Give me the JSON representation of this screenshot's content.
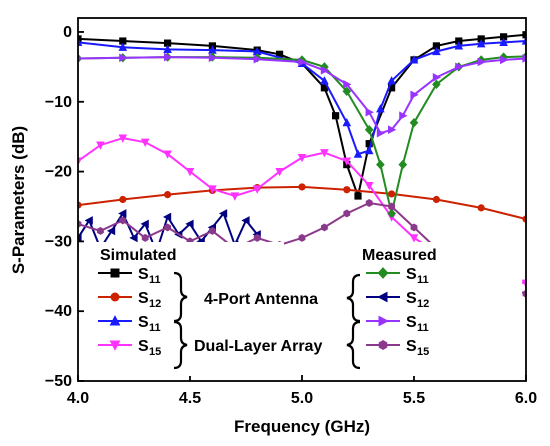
{
  "chart_data": {
    "type": "line",
    "title": "",
    "xlabel": "Frequency (GHz)",
    "ylabel": "S-Parameters (dB)",
    "xlim": [
      4.0,
      6.0
    ],
    "ylim": [
      -50,
      2
    ],
    "xticks": [
      4.0,
      4.5,
      5.0,
      5.5,
      6.0
    ],
    "xtick_labels": [
      "4.0",
      "4.5",
      "5.0",
      "5.5",
      "6.0"
    ],
    "yticks": [
      0,
      -10,
      -20,
      -30,
      -40,
      -50
    ],
    "ytick_labels": [
      "0",
      "−10",
      "−20",
      "−30",
      "−40",
      "−50"
    ],
    "grid": false,
    "legend": {
      "simulated_title": "Simulated",
      "measured_title": "Measured",
      "group_4port": "4-Port Antenna",
      "group_dual": "Dual-Layer Array",
      "entries": [
        {
          "id": "sim_s11_4p",
          "label": "S",
          "sub": "11"
        },
        {
          "id": "sim_s12_4p",
          "label": "S",
          "sub": "12"
        },
        {
          "id": "sim_s11_dl",
          "label": "S",
          "sub": "11"
        },
        {
          "id": "sim_s15_dl",
          "label": "S",
          "sub": "15"
        },
        {
          "id": "meas_s11_4p",
          "label": "S",
          "sub": "11"
        },
        {
          "id": "meas_s12_4p",
          "label": "S",
          "sub": "12"
        },
        {
          "id": "meas_s11_dl",
          "label": "S",
          "sub": "11"
        },
        {
          "id": "meas_s15_dl",
          "label": "S",
          "sub": "15"
        }
      ]
    },
    "series": [
      {
        "id": "sim_s11_4p",
        "color": "#000000",
        "marker": "square",
        "x": [
          4.0,
          4.2,
          4.4,
          4.6,
          4.8,
          4.9,
          5.0,
          5.1,
          5.15,
          5.2,
          5.25,
          5.3,
          5.4,
          5.5,
          5.6,
          5.7,
          5.8,
          5.9,
          6.0
        ],
        "y": [
          -1.0,
          -1.3,
          -1.6,
          -2.0,
          -2.6,
          -3.2,
          -4.5,
          -8.0,
          -12.0,
          -19.0,
          -23.5,
          -16.0,
          -8.0,
          -4.0,
          -2.0,
          -1.3,
          -1.0,
          -0.7,
          -0.4
        ]
      },
      {
        "id": "sim_s12_4p",
        "color": "#cc2200",
        "marker": "circle",
        "x": [
          4.0,
          4.2,
          4.4,
          4.6,
          4.8,
          5.0,
          5.2,
          5.4,
          5.6,
          5.8,
          6.0
        ],
        "y": [
          -24.8,
          -24.0,
          -23.3,
          -22.7,
          -22.3,
          -22.2,
          -22.6,
          -23.2,
          -24.0,
          -25.2,
          -26.8
        ]
      },
      {
        "id": "sim_s11_dl",
        "color": "#1a1aff",
        "marker": "triangle-up",
        "x": [
          4.0,
          4.2,
          4.4,
          4.6,
          4.8,
          5.0,
          5.1,
          5.2,
          5.25,
          5.3,
          5.35,
          5.4,
          5.5,
          5.6,
          5.7,
          5.8,
          5.9,
          6.0
        ],
        "y": [
          -1.5,
          -2.2,
          -2.5,
          -2.6,
          -2.8,
          -4.5,
          -7.0,
          -13.0,
          -17.5,
          -17.0,
          -11.0,
          -7.0,
          -4.0,
          -2.8,
          -2.0,
          -1.7,
          -1.5,
          -1.3
        ]
      },
      {
        "id": "sim_s15_dl",
        "color": "#ff33ff",
        "marker": "triangle-down",
        "x": [
          4.0,
          4.1,
          4.2,
          4.3,
          4.4,
          4.5,
          4.6,
          4.7,
          4.8,
          4.9,
          5.0,
          5.1,
          5.2,
          5.3,
          5.4,
          5.5,
          5.6,
          5.7,
          5.8,
          5.9,
          6.0
        ],
        "y": [
          -18.5,
          -16.2,
          -15.2,
          -15.8,
          -17.5,
          -20.0,
          -22.5,
          -23.5,
          -22.5,
          -20.0,
          -18.0,
          -17.3,
          -18.5,
          -22.0,
          -26.5,
          -29.5,
          -31.5,
          -33.0,
          -34.5,
          -35.5,
          -36.0
        ]
      },
      {
        "id": "meas_s11_4p",
        "color": "#228b22",
        "marker": "diamond",
        "x": [
          4.0,
          4.2,
          4.4,
          4.6,
          4.8,
          5.0,
          5.1,
          5.2,
          5.3,
          5.35,
          5.4,
          5.45,
          5.5,
          5.6,
          5.7,
          5.8,
          5.9,
          6.0
        ],
        "y": [
          -3.8,
          -3.7,
          -3.6,
          -3.6,
          -3.7,
          -4.0,
          -5.0,
          -8.5,
          -14.0,
          -19.0,
          -26.0,
          -19.0,
          -13.0,
          -7.5,
          -5.0,
          -4.0,
          -3.6,
          -3.5
        ]
      },
      {
        "id": "meas_s12_4p",
        "color": "#000080",
        "marker": "triangle-left",
        "x": [
          4.0,
          4.05,
          4.1,
          4.15,
          4.2,
          4.25,
          4.3,
          4.35,
          4.4,
          4.45,
          4.5,
          4.55,
          4.6,
          4.65,
          4.7,
          4.75,
          4.8
        ],
        "y": [
          -29.5,
          -27.0,
          -31.0,
          -28.5,
          -26.0,
          -29.5,
          -27.5,
          -31.5,
          -26.5,
          -29.0,
          -27.5,
          -30.0,
          -28.0,
          -26.0,
          -30.5,
          -27.0,
          -29.0
        ]
      },
      {
        "id": "meas_s11_dl",
        "color": "#9933ff",
        "marker": "triangle-right",
        "x": [
          4.0,
          4.2,
          4.4,
          4.6,
          4.8,
          5.0,
          5.1,
          5.2,
          5.3,
          5.35,
          5.4,
          5.45,
          5.5,
          5.6,
          5.7,
          5.8,
          5.9,
          6.0
        ],
        "y": [
          -3.8,
          -3.7,
          -3.6,
          -3.7,
          -3.9,
          -4.3,
          -5.5,
          -7.5,
          -11.5,
          -14.5,
          -14.0,
          -12.0,
          -9.0,
          -6.5,
          -5.0,
          -4.3,
          -4.0,
          -3.8
        ]
      },
      {
        "id": "meas_s15_dl",
        "color": "#8b3a8b",
        "marker": "hexagon",
        "x": [
          4.0,
          4.1,
          4.2,
          4.3,
          4.4,
          4.5,
          4.6,
          4.7,
          4.8,
          4.9,
          5.0,
          5.1,
          5.2,
          5.3,
          5.4,
          5.5,
          5.6,
          5.7,
          5.8,
          5.9,
          6.0
        ],
        "y": [
          -27.5,
          -28.5,
          -27.0,
          -29.5,
          -28.0,
          -30.0,
          -28.5,
          -31.0,
          -29.5,
          -30.5,
          -29.5,
          -28.0,
          -26.0,
          -24.5,
          -25.0,
          -28.0,
          -31.0,
          -33.5,
          -35.5,
          -36.5,
          -37.5
        ]
      }
    ]
  }
}
